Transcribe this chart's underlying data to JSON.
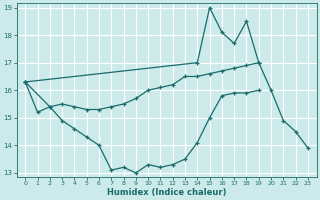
{
  "xlabel": "Humidex (Indice chaleur)",
  "x_all": [
    0,
    1,
    2,
    3,
    4,
    5,
    6,
    7,
    8,
    9,
    10,
    11,
    12,
    13,
    14,
    15,
    16,
    17,
    18,
    19,
    20,
    21,
    22,
    23
  ],
  "line_peak": {
    "x": [
      0,
      14,
      15,
      16,
      17,
      18,
      19
    ],
    "y": [
      16.3,
      17.0,
      19.0,
      18.1,
      17.7,
      18.5,
      17.0
    ]
  },
  "line_upper": {
    "x": [
      0,
      2,
      3,
      4,
      5,
      6,
      7,
      8,
      9,
      10,
      11,
      12,
      13,
      14,
      15,
      16,
      17,
      18,
      19,
      20,
      21,
      22,
      23
    ],
    "y": [
      16.3,
      15.4,
      15.5,
      15.4,
      15.3,
      15.3,
      15.4,
      15.5,
      15.7,
      16.0,
      16.1,
      16.2,
      16.5,
      16.5,
      16.6,
      16.7,
      16.8,
      16.9,
      17.0,
      16.0,
      14.9,
      14.5,
      13.9
    ]
  },
  "line_lower": {
    "x": [
      0,
      1,
      2,
      3,
      4,
      5,
      6,
      7,
      8,
      9,
      10,
      11,
      12,
      13,
      14,
      15,
      16,
      17,
      18,
      19
    ],
    "y": [
      16.3,
      15.2,
      15.4,
      14.9,
      14.6,
      14.3,
      14.0,
      13.1,
      13.2,
      13.0,
      13.3,
      13.2,
      13.3,
      13.5,
      14.1,
      15.0,
      15.8,
      15.9,
      15.9,
      16.0
    ]
  },
  "color": "#1a6b6b",
  "bg_color": "#cdeaea",
  "grid_color": "#ffffff",
  "ylim": [
    13,
    19
  ],
  "yticks": [
    13,
    14,
    15,
    16,
    17,
    18,
    19
  ],
  "xtick_labels": [
    "0",
    "1",
    "2",
    "3",
    "4",
    "5",
    "6",
    "7",
    "8",
    "9",
    "10",
    "11",
    "12",
    "13",
    "14",
    "15",
    "16",
    "17",
    "18",
    "19",
    "20",
    "21",
    "22",
    "23"
  ]
}
